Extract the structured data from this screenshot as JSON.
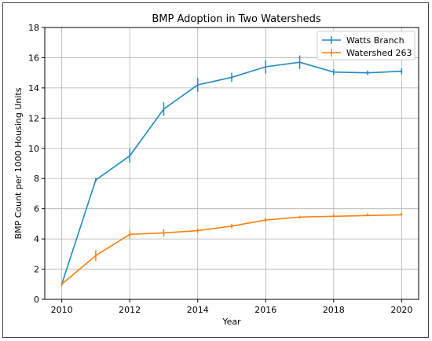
{
  "chart_data": {
    "type": "line",
    "title": "BMP Adoption in Two Watersheds",
    "xlabel": "Year",
    "ylabel": "BMP Count per 1000 Housing Units",
    "xlim": [
      2009.5,
      2020.5
    ],
    "ylim": [
      0,
      18
    ],
    "xticks": [
      2010,
      2012,
      2014,
      2016,
      2018,
      2020
    ],
    "yticks": [
      0,
      2,
      4,
      6,
      8,
      10,
      12,
      14,
      16,
      18
    ],
    "grid": true,
    "legend_position": "top-right",
    "x": [
      2010,
      2011,
      2012,
      2013,
      2014,
      2015,
      2016,
      2017,
      2018,
      2019,
      2020
    ],
    "series": [
      {
        "name": "Watts Branch",
        "color": "#1f8ac0",
        "values": [
          1.0,
          7.9,
          9.5,
          12.6,
          14.2,
          14.7,
          15.4,
          15.7,
          15.05,
          15.0,
          15.1
        ],
        "errors": [
          0.1,
          0.15,
          0.45,
          0.45,
          0.45,
          0.3,
          0.45,
          0.45,
          0.2,
          0.15,
          0.2
        ]
      },
      {
        "name": "Watershed 263",
        "color": "#ff7f0e",
        "values": [
          1.0,
          2.9,
          4.3,
          4.4,
          4.55,
          4.85,
          5.25,
          5.45,
          5.5,
          5.55,
          5.6
        ],
        "errors": [
          0.1,
          0.35,
          0.25,
          0.25,
          0.15,
          0.15,
          0.15,
          0.1,
          0.05,
          0.05,
          0.05
        ]
      }
    ]
  }
}
